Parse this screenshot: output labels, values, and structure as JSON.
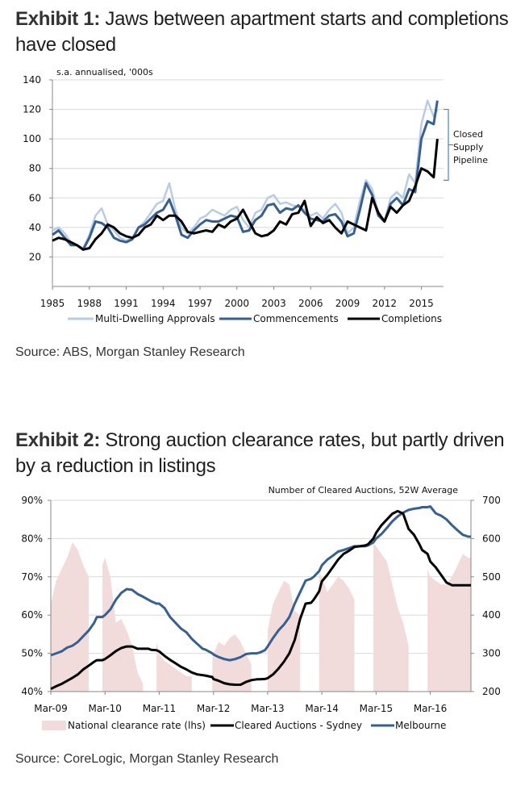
{
  "exhibit1": {
    "label": "Exhibit 1:",
    "title": " Jaws between apartment starts and completions have closed",
    "source": "Source: ABS, Morgan Stanley Research"
  },
  "exhibit2": {
    "label": "Exhibit 2:",
    "title": " Strong auction clearance rates, but partly driven by a reduction in listings",
    "source": "Source: CoreLogic, Morgan Stanley Research"
  },
  "chart_data": [
    {
      "type": "line",
      "title": "Jaws between apartment starts and completions have closed",
      "ylabel": "s.a. annualised, '000s",
      "xlabel": "",
      "ylim": [
        0,
        140
      ],
      "xlim": [
        1985,
        2016.8
      ],
      "yticks": [
        20,
        40,
        60,
        80,
        100,
        120,
        140
      ],
      "xticks": [
        "1985",
        "1988",
        "1991",
        "1994",
        "1997",
        "2000",
        "2003",
        "2006",
        "2009",
        "2012",
        "2015"
      ],
      "grid": true,
      "legend": "bottom",
      "annotation": {
        "text": [
          "Closed",
          "Supply",
          "Pipeline"
        ],
        "bracket_range": [
          72,
          120
        ]
      },
      "x": [
        1985.0,
        1985.5,
        1986.0,
        1986.5,
        1987.0,
        1987.5,
        1988.0,
        1988.5,
        1989.0,
        1989.5,
        1990.0,
        1990.5,
        1991.0,
        1991.5,
        1992.0,
        1992.5,
        1993.0,
        1993.5,
        1994.0,
        1994.5,
        1995.0,
        1995.5,
        1996.0,
        1996.5,
        1997.0,
        1997.5,
        1998.0,
        1998.5,
        1999.0,
        1999.5,
        2000.0,
        2000.5,
        2001.0,
        2001.5,
        2002.0,
        2002.5,
        2003.0,
        2003.5,
        2004.0,
        2004.5,
        2005.0,
        2005.5,
        2006.0,
        2006.5,
        2007.0,
        2007.5,
        2008.0,
        2008.5,
        2009.0,
        2009.5,
        2010.0,
        2010.5,
        2011.0,
        2011.5,
        2012.0,
        2012.5,
        2013.0,
        2013.5,
        2014.0,
        2014.5,
        2015.0,
        2015.5,
        2016.0,
        2016.3
      ],
      "series": [
        {
          "name": "Multi-Dwelling Approvals",
          "color": "#b8cce4",
          "values": [
            38,
            40,
            36,
            30,
            28,
            26,
            35,
            48,
            53,
            42,
            38,
            33,
            31,
            33,
            40,
            44,
            50,
            56,
            58,
            70,
            52,
            40,
            36,
            40,
            46,
            48,
            52,
            50,
            48,
            52,
            54,
            45,
            40,
            50,
            52,
            60,
            62,
            56,
            57,
            55,
            54,
            52,
            48,
            50,
            46,
            52,
            56,
            50,
            36,
            40,
            58,
            72,
            66,
            50,
            44,
            60,
            64,
            60,
            76,
            70,
            110,
            126,
            115,
            120
          ]
        },
        {
          "name": "Commencements",
          "color": "#366092",
          "values": [
            35,
            38,
            33,
            28,
            28,
            25,
            33,
            44,
            43,
            40,
            33,
            31,
            30,
            32,
            40,
            42,
            46,
            50,
            52,
            59,
            48,
            35,
            33,
            38,
            42,
            45,
            44,
            44,
            46,
            48,
            47,
            37,
            38,
            45,
            48,
            55,
            56,
            50,
            53,
            52,
            55,
            50,
            46,
            45,
            44,
            48,
            49,
            44,
            34,
            36,
            52,
            70,
            62,
            48,
            44,
            56,
            60,
            55,
            66,
            64,
            100,
            112,
            110,
            126
          ]
        },
        {
          "name": "Completions",
          "color": "#000000",
          "values": [
            31,
            33,
            32,
            30,
            28,
            25,
            26,
            32,
            36,
            42,
            40,
            36,
            34,
            33,
            35,
            40,
            42,
            48,
            45,
            48,
            48,
            44,
            37,
            36,
            37,
            38,
            37,
            42,
            40,
            44,
            46,
            52,
            44,
            36,
            34,
            35,
            38,
            44,
            42,
            49,
            50,
            58,
            41,
            47,
            43,
            45,
            40,
            36,
            44,
            42,
            40,
            38,
            60,
            50,
            44,
            54,
            50,
            55,
            58,
            68,
            80,
            78,
            74,
            100
          ]
        }
      ]
    },
    {
      "type": "area",
      "title": "Strong auction clearance rates, but partly driven by a reduction in listings",
      "subtitle": "Number of Cleared Auctions, 52W Average",
      "ylim_left": [
        0.4,
        0.9
      ],
      "ylim_right": [
        200,
        700
      ],
      "yticks_left": [
        "40%",
        "50%",
        "60%",
        "70%",
        "80%",
        "90%"
      ],
      "yticks_right": [
        "200",
        "300",
        "400",
        "500",
        "600",
        "700"
      ],
      "xticks": [
        "Mar-09",
        "Mar-10",
        "Mar-11",
        "Mar-12",
        "Mar-13",
        "Mar-14",
        "Mar-15",
        "Mar-16"
      ],
      "xlim_years_since_mar09": [
        0,
        7.75
      ],
      "grid": true,
      "legend": "bottom",
      "x_years_since_mar09": [
        0.0,
        0.1,
        0.2,
        0.3,
        0.4,
        0.5,
        0.6,
        0.7,
        0.8,
        0.85,
        0.95,
        1.0,
        1.1,
        1.2,
        1.3,
        1.4,
        1.5,
        1.6,
        1.7,
        1.8,
        1.85,
        1.95,
        2.0,
        2.1,
        2.2,
        2.3,
        2.4,
        2.5,
        2.6,
        2.7,
        2.8,
        2.85,
        2.98,
        3.0,
        3.1,
        3.2,
        3.3,
        3.4,
        3.5,
        3.6,
        3.7,
        3.8,
        3.85,
        3.95,
        4.0,
        4.1,
        4.2,
        4.3,
        4.4,
        4.5,
        4.6,
        4.7,
        4.8,
        4.85,
        4.95,
        5.0,
        5.1,
        5.2,
        5.3,
        5.4,
        5.5,
        5.6,
        5.7,
        5.8,
        5.85,
        5.95,
        6.0,
        6.1,
        6.2,
        6.3,
        6.4,
        6.5,
        6.6,
        6.7,
        6.8,
        6.85,
        6.95,
        7.0,
        7.1,
        7.2,
        7.3,
        7.4,
        7.5,
        7.6,
        7.7,
        7.75
      ],
      "series": [
        {
          "name": "National clearance rate (lhs)",
          "axis": "left",
          "color": "#f2dcdb",
          "values": [
            0.63,
            0.69,
            0.72,
            0.75,
            0.79,
            0.77,
            0.73,
            0.7,
            0.0,
            0.0,
            0.73,
            0.75,
            0.7,
            0.58,
            0.59,
            0.56,
            0.52,
            0.45,
            0.42,
            0.0,
            0.0,
            0.53,
            0.5,
            0.48,
            0.47,
            0.46,
            0.45,
            0.44,
            0.44,
            0.0,
            0.0,
            0.0,
            0.48,
            0.5,
            0.53,
            0.52,
            0.54,
            0.55,
            0.53,
            0.5,
            0.47,
            0.0,
            0.0,
            0.0,
            0.56,
            0.63,
            0.66,
            0.69,
            0.68,
            0.61,
            0.6,
            0.0,
            0.0,
            0.0,
            0.71,
            0.7,
            0.66,
            0.68,
            0.7,
            0.69,
            0.67,
            0.64,
            0.0,
            0.0,
            0.0,
            0.79,
            0.78,
            0.76,
            0.74,
            0.68,
            0.62,
            0.58,
            0.52,
            0.0,
            0.0,
            0.0,
            0.72,
            0.7,
            0.69,
            0.68,
            0.68,
            0.7,
            0.73,
            0.76,
            0.75,
            0.75
          ]
        },
        {
          "name": "Cleared Auctions - Sydney",
          "axis": "right",
          "color": "#000000",
          "values": [
            207,
            214,
            220,
            228,
            236,
            245,
            258,
            268,
            278,
            282,
            282,
            285,
            295,
            306,
            314,
            318,
            318,
            312,
            312,
            312,
            309,
            308,
            305,
            293,
            283,
            274,
            265,
            258,
            250,
            245,
            243,
            242,
            238,
            233,
            228,
            222,
            219,
            218,
            218,
            225,
            230,
            232,
            232,
            233,
            235,
            245,
            260,
            278,
            300,
            335,
            390,
            430,
            432,
            440,
            462,
            488,
            505,
            525,
            545,
            560,
            568,
            578,
            580,
            582,
            585,
            600,
            615,
            635,
            650,
            665,
            672,
            665,
            625,
            610,
            585,
            570,
            560,
            540,
            525,
            505,
            485,
            478,
            478,
            478,
            478,
            478
          ]
        },
        {
          "name": "Melbourne",
          "axis": "right",
          "color": "#366092",
          "values": [
            295,
            300,
            305,
            315,
            320,
            330,
            345,
            360,
            380,
            395,
            395,
            400,
            415,
            440,
            458,
            468,
            466,
            455,
            448,
            440,
            436,
            430,
            430,
            418,
            395,
            380,
            365,
            355,
            338,
            325,
            312,
            310,
            300,
            297,
            290,
            285,
            282,
            285,
            290,
            298,
            300,
            300,
            302,
            308,
            318,
            340,
            360,
            375,
            395,
            430,
            460,
            490,
            495,
            500,
            515,
            530,
            545,
            555,
            566,
            570,
            575,
            580,
            580,
            580,
            582,
            590,
            600,
            612,
            628,
            645,
            658,
            668,
            675,
            678,
            680,
            682,
            682,
            684,
            666,
            660,
            650,
            635,
            622,
            610,
            605,
            605
          ]
        }
      ]
    }
  ]
}
